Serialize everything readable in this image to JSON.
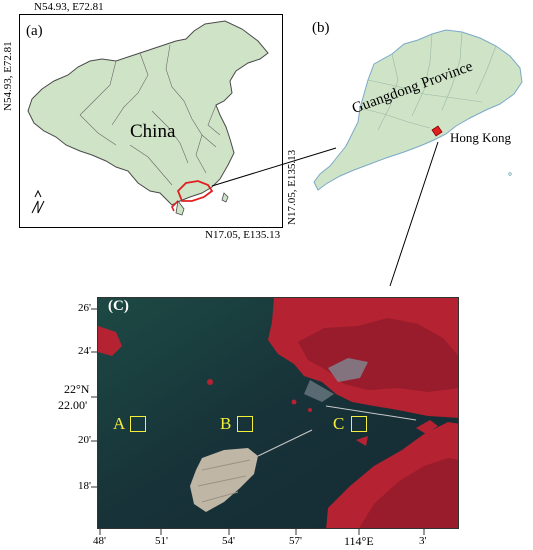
{
  "panel_a": {
    "label": "(a)",
    "country_label": "China",
    "top_left_coord": "N54.93, E72.81",
    "left_coord": "N54.93, E72.81",
    "bottom_right_coord": "N17.05, E135.13",
    "right_coord": "N17.05, E135.13"
  },
  "panel_b": {
    "label": "(b)",
    "province_label": "Guangdong Province",
    "city_label": "Hong Kong"
  },
  "panel_c": {
    "label": "(C)",
    "y_ticks": [
      "26'",
      "24'",
      "22°N",
      "22.00'",
      "20'",
      "18'"
    ],
    "x_ticks": [
      "48'",
      "51'",
      "54'",
      "57'",
      "114°E",
      "3'"
    ],
    "sites": [
      "A",
      "B",
      "C"
    ]
  },
  "colors": {
    "land_fill": "#cfe3c7",
    "highlight": "#e02020",
    "site_marker": "#f3ef3c",
    "vegetation": "#b52232",
    "water": "#173238"
  }
}
